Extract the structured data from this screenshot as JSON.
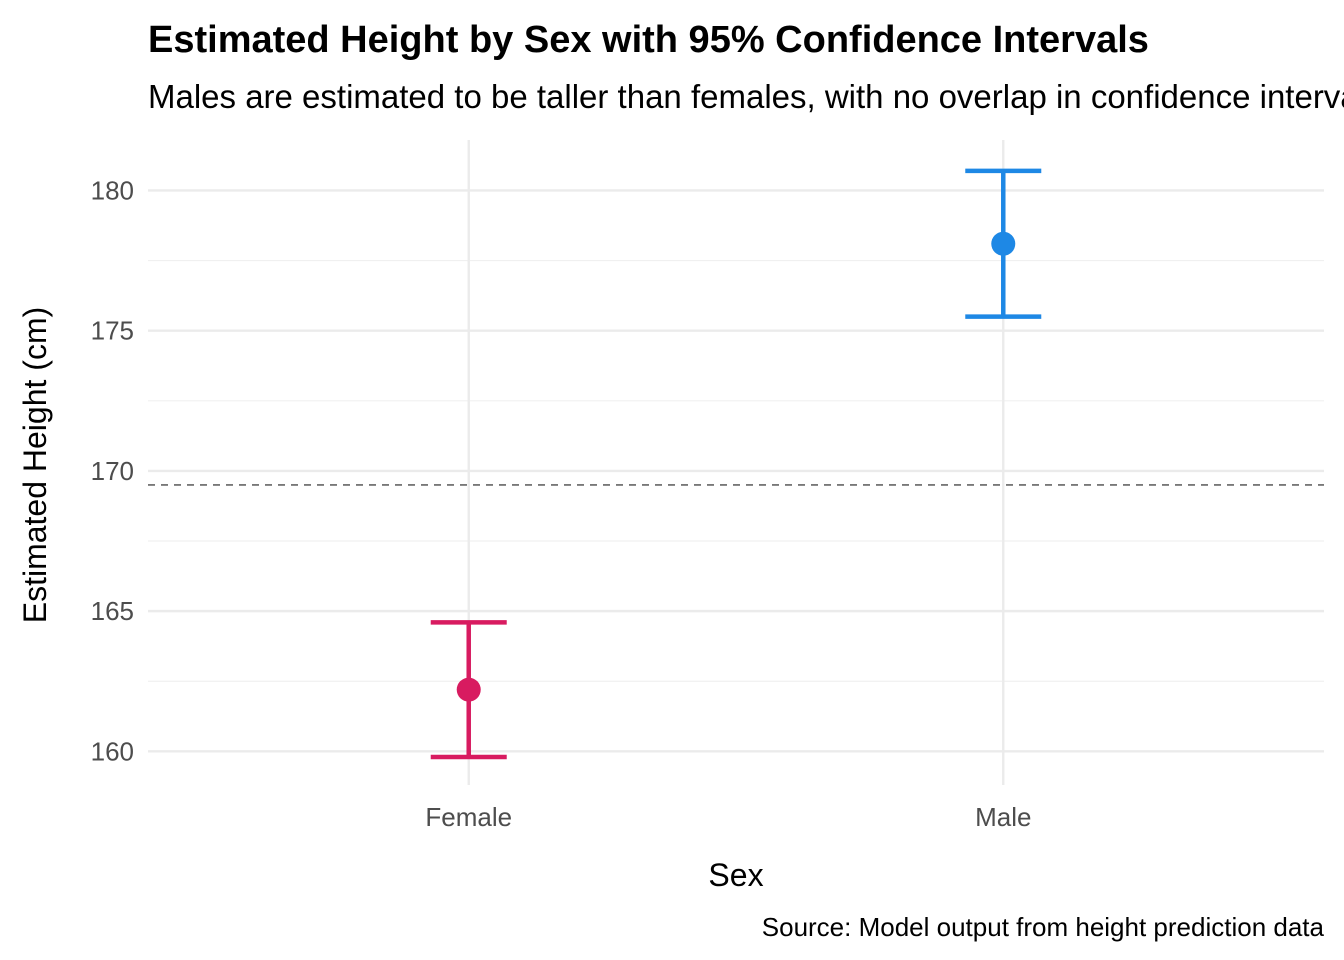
{
  "chart_data": {
    "type": "errorbar",
    "title": "Estimated Height by Sex with 95% Confidence Intervals",
    "subtitle": "Males are estimated to be taller than females, with no overlap in confidence intervals",
    "xlabel": "Sex",
    "ylabel": "Estimated Height (cm)",
    "caption": "Source: Model output from height prediction data",
    "categories": [
      "Female",
      "Male"
    ],
    "estimates": [
      162.2,
      178.1
    ],
    "lower": [
      159.8,
      175.5
    ],
    "upper": [
      164.6,
      180.7
    ],
    "colors": [
      "#d81b60",
      "#1e88e5"
    ],
    "reference_line": {
      "value": 169.5,
      "style": "dashed",
      "color": "#666666"
    },
    "ylim": [
      158.8,
      181.8
    ],
    "yticks": [
      160,
      165,
      170,
      175,
      180
    ],
    "ytick_labels": [
      "160",
      "165",
      "170",
      "175",
      "180"
    ],
    "grid": true,
    "legend": "none"
  }
}
